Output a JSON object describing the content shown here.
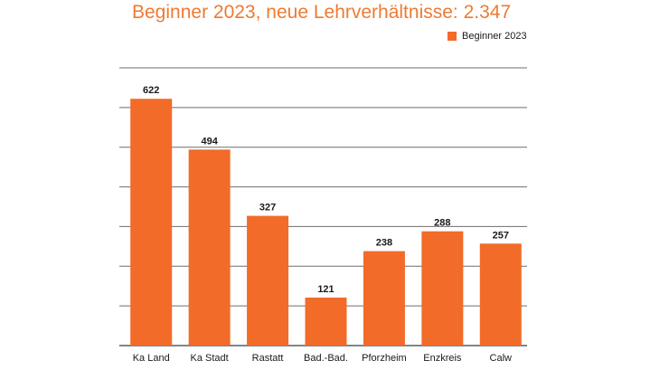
{
  "chart_data": {
    "type": "bar",
    "title": "Beginner 2023, neue Lehrverhältnisse: 2.347",
    "categories": [
      "Ka Land",
      "Ka Stadt",
      "Rastatt",
      "Bad.-Bad.",
      "Pforzheim",
      "Enzkreis",
      "Calw"
    ],
    "series": [
      {
        "name": "Beginner 2023",
        "values": [
          622,
          494,
          327,
          121,
          238,
          288,
          257
        ]
      }
    ],
    "ylim": [
      0,
      700
    ],
    "grid": true,
    "legend_position": "top-right",
    "colors": {
      "bar": "#f26b29",
      "title": "#ee7a32",
      "grid": "#6e6e6e"
    }
  }
}
